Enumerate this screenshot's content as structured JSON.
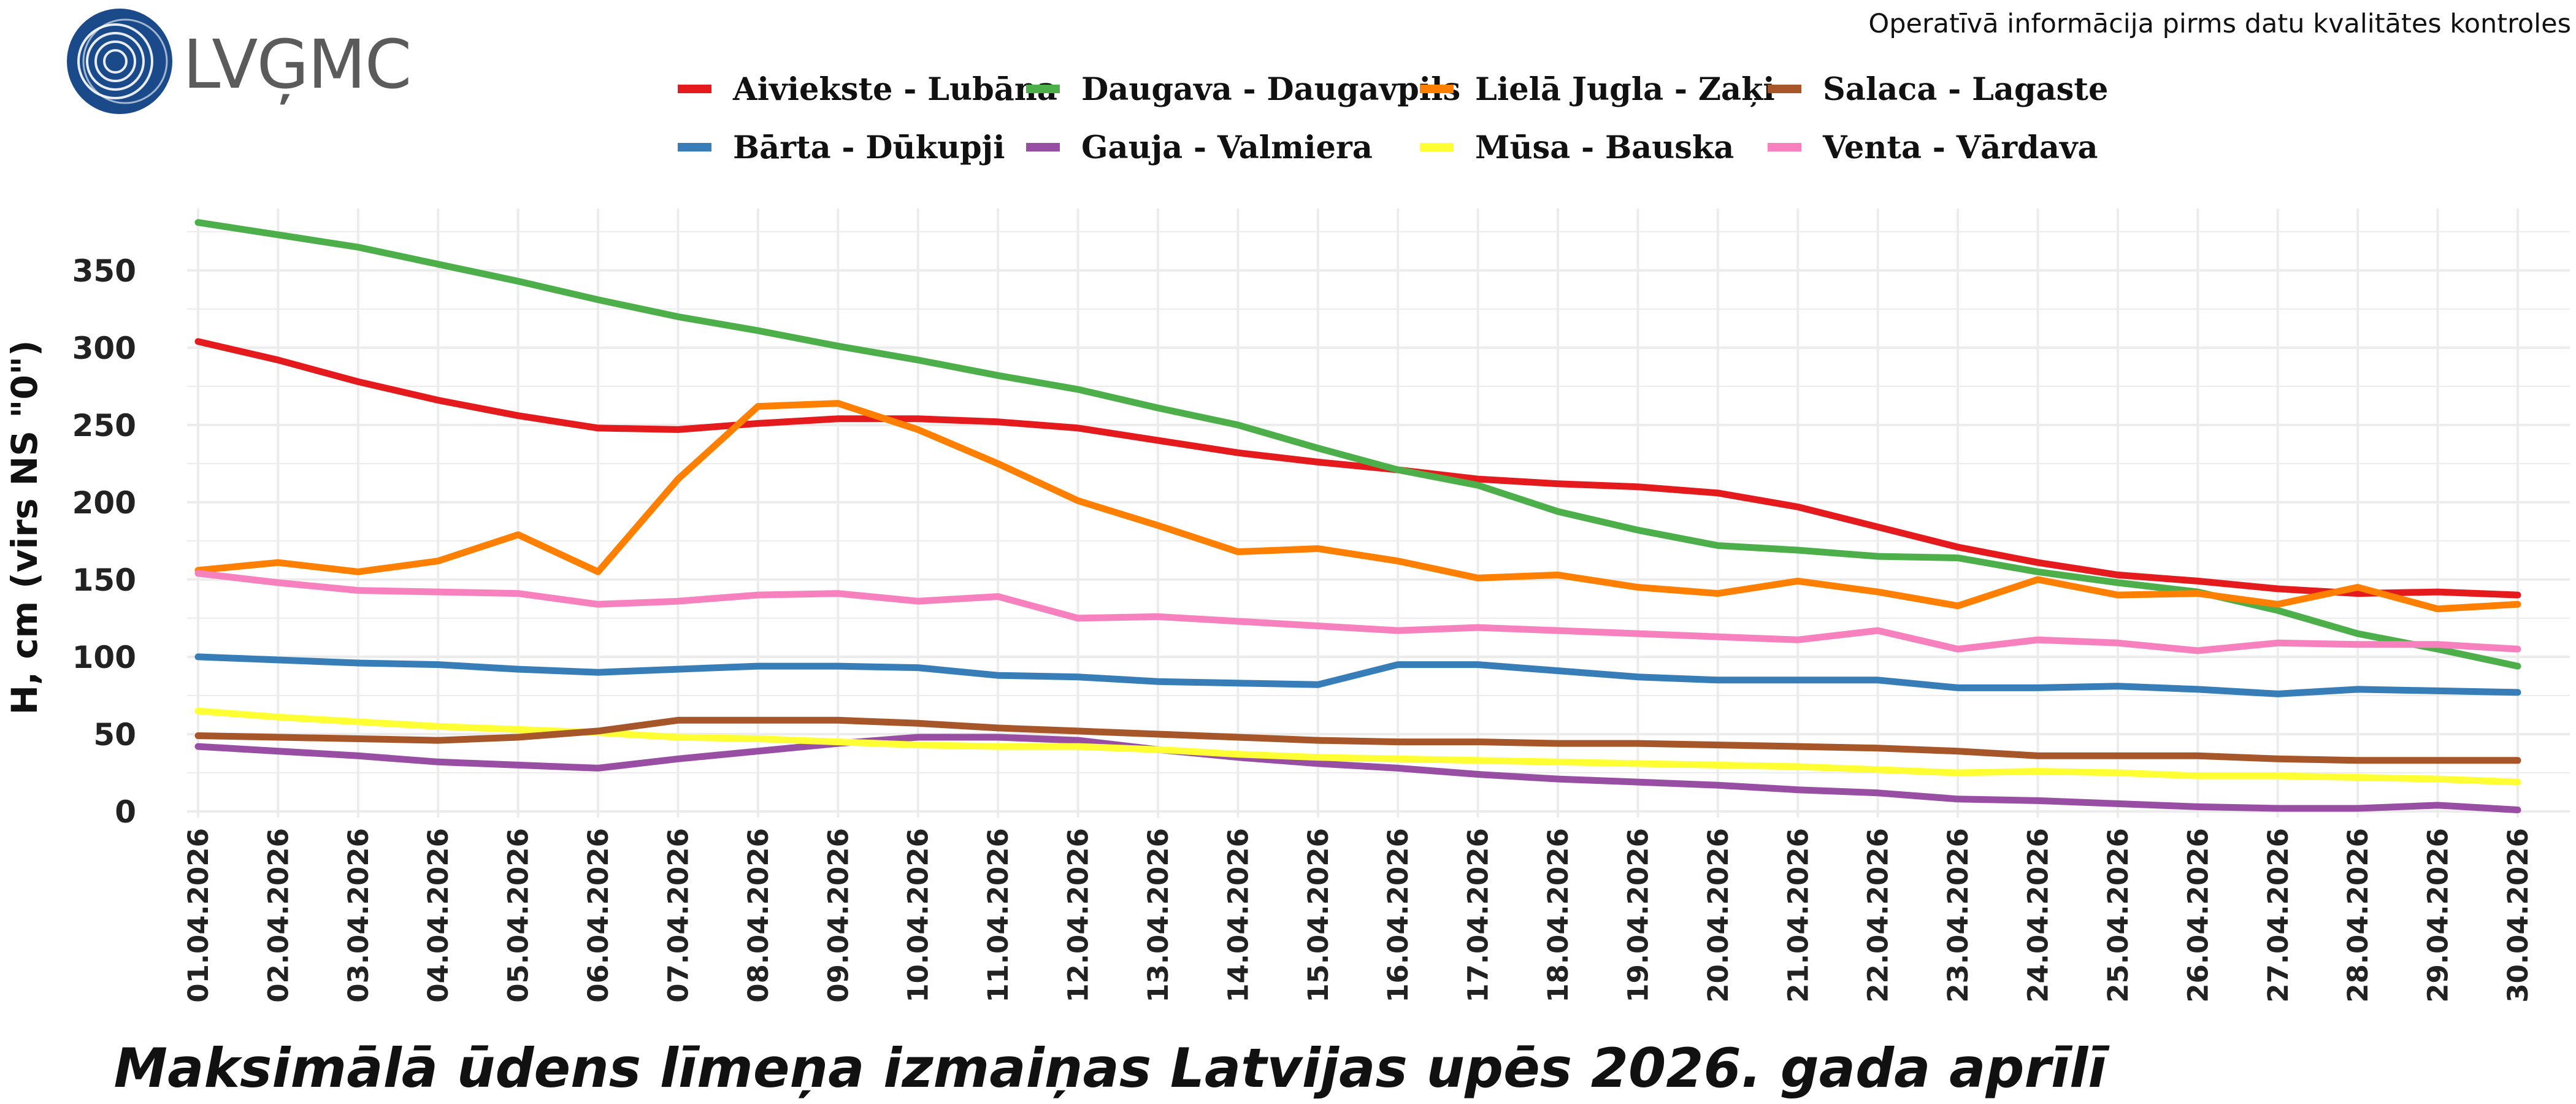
{
  "header": {
    "logo_text": "LVĢMC",
    "notice": "Operatīvā informācija pirms datu kvalitātes kontroles"
  },
  "chart_data": {
    "type": "line",
    "title": "Maksimālā ūdens līmeņa izmaiņas Latvijas upēs 2026. gada aprīlī",
    "ylabel": "H, cm (virs NS \"0\")",
    "xlabel": "",
    "ylim": [
      0,
      390
    ],
    "yticks": [
      0,
      50,
      100,
      150,
      200,
      250,
      300,
      350
    ],
    "grid": true,
    "legend_position": "top",
    "x": [
      "01.04.2026",
      "02.04.2026",
      "03.04.2026",
      "04.04.2026",
      "05.04.2026",
      "06.04.2026",
      "07.04.2026",
      "08.04.2026",
      "09.04.2026",
      "10.04.2026",
      "11.04.2026",
      "12.04.2026",
      "13.04.2026",
      "14.04.2026",
      "15.04.2026",
      "16.04.2026",
      "17.04.2026",
      "18.04.2026",
      "19.04.2026",
      "20.04.2026",
      "21.04.2026",
      "22.04.2026",
      "23.04.2026",
      "24.04.2026",
      "25.04.2026",
      "26.04.2026",
      "27.04.2026",
      "28.04.2026",
      "29.04.2026",
      "30.04.2026"
    ],
    "series": [
      {
        "name": "Aiviekste - Lubāna",
        "color": "#e41a1c",
        "values": [
          304,
          292,
          278,
          266,
          256,
          248,
          247,
          251,
          254,
          254,
          252,
          248,
          240,
          232,
          226,
          221,
          215,
          212,
          210,
          206,
          197,
          184,
          171,
          161,
          153,
          149,
          144,
          141,
          142,
          140
        ]
      },
      {
        "name": "Bārta - Dūkupji",
        "color": "#377eb8",
        "values": [
          100,
          98,
          96,
          95,
          92,
          90,
          92,
          94,
          94,
          93,
          88,
          87,
          84,
          83,
          82,
          95,
          95,
          91,
          87,
          85,
          85,
          85,
          80,
          80,
          81,
          79,
          76,
          79,
          78,
          77
        ]
      },
      {
        "name": "Daugava - Daugavpils",
        "color": "#4daf4a",
        "values": [
          381,
          373,
          365,
          354,
          343,
          331,
          320,
          311,
          301,
          292,
          282,
          273,
          261,
          250,
          235,
          221,
          211,
          194,
          182,
          172,
          169,
          165,
          164,
          155,
          148,
          142,
          130,
          115,
          105,
          94
        ]
      },
      {
        "name": "Gauja - Valmiera",
        "color": "#984ea3",
        "values": [
          42,
          39,
          36,
          32,
          30,
          28,
          34,
          39,
          44,
          48,
          48,
          46,
          40,
          35,
          31,
          28,
          24,
          21,
          19,
          17,
          14,
          12,
          8,
          7,
          5,
          3,
          2,
          2,
          4,
          1
        ]
      },
      {
        "name": "Lielā Jugla - Zaķi",
        "color": "#ff7f00",
        "values": [
          156,
          161,
          155,
          162,
          179,
          155,
          215,
          262,
          264,
          247,
          225,
          201,
          185,
          168,
          170,
          162,
          151,
          153,
          145,
          141,
          149,
          142,
          133,
          150,
          140,
          141,
          134,
          145,
          131,
          134
        ]
      },
      {
        "name": "Mūsa - Bauska",
        "color": "#ffff33",
        "values": [
          65,
          61,
          58,
          55,
          53,
          51,
          48,
          47,
          45,
          43,
          42,
          42,
          40,
          37,
          35,
          34,
          33,
          32,
          31,
          30,
          29,
          27,
          25,
          26,
          25,
          23,
          23,
          22,
          21,
          19
        ]
      },
      {
        "name": "Salaca - Lagaste",
        "color": "#a65628",
        "values": [
          49,
          48,
          47,
          46,
          48,
          52,
          59,
          59,
          59,
          57,
          54,
          52,
          50,
          48,
          46,
          45,
          45,
          44,
          44,
          43,
          42,
          41,
          39,
          36,
          36,
          36,
          34,
          33,
          33,
          33
        ]
      },
      {
        "name": "Venta - Vārdava",
        "color": "#f781bf",
        "values": [
          154,
          148,
          143,
          142,
          141,
          134,
          136,
          140,
          141,
          136,
          139,
          125,
          126,
          123,
          120,
          117,
          119,
          117,
          115,
          113,
          111,
          117,
          105,
          111,
          109,
          104,
          109,
          108,
          108,
          105
        ]
      }
    ]
  }
}
